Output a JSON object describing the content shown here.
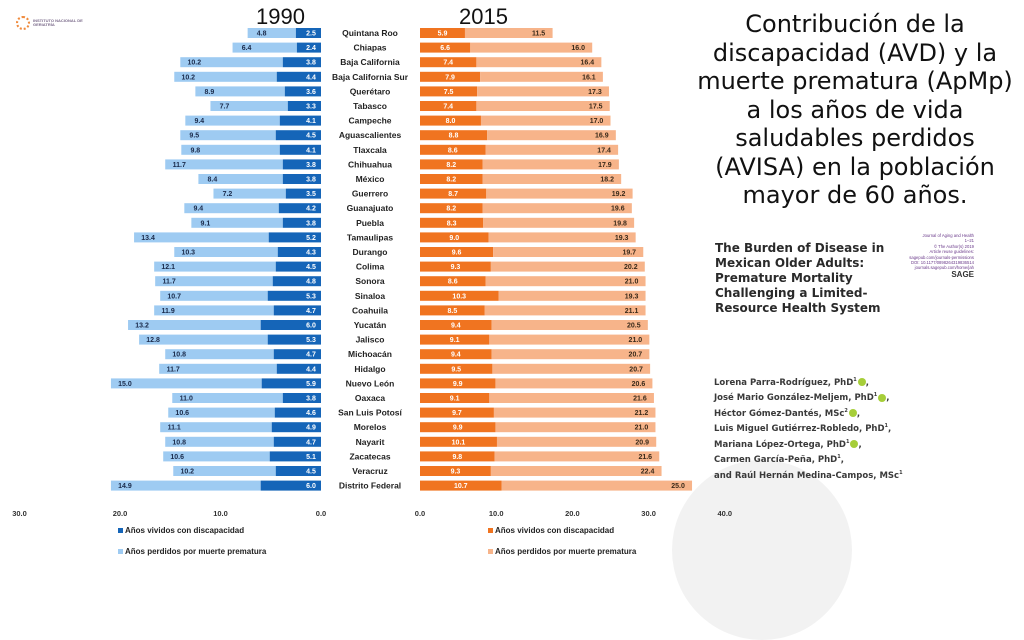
{
  "logo": {
    "text": "INSTITUTO NACIONAL DE GERIATRÍA",
    "icon": "geriatria-logo-icon"
  },
  "headline": "Contribución de la discapacidad (AVD) y la muerte prematura (ApMp) a los años de vida saludables perdidos (AVISA) en la población mayor de 60 años.",
  "paper": {
    "title": "The Burden of Disease in Mexican Older Adults: Premature Mortality Challenging a Limited-Resource Health System",
    "journal_lines": [
      "Journal of Aging and Health",
      "1–21",
      "© The Author(s) 2019",
      "Article reuse guidelines:",
      "sagepub.com/journals-permissions",
      "DOI: 10.1177/0898264319836514",
      "journals.sagepub.com/home/jah"
    ],
    "publisher": "SAGE",
    "authors": [
      {
        "name": "Lorena Parra-Rodríguez, PhD",
        "sup": "1",
        "orcid": true
      },
      {
        "name": "José Mario González-Meljem, PhD",
        "sup": "1",
        "orcid": true
      },
      {
        "name": "Héctor Gómez-Dantés, MSc",
        "sup": "2",
        "orcid": true
      },
      {
        "name": "Luis Miguel Gutiérrez-Robledo, PhD",
        "sup": "1",
        "orcid": false
      },
      {
        "name": "Mariana López-Ortega, PhD",
        "sup": "1",
        "orcid": true
      },
      {
        "name": "Carmen García-Peña, PhD",
        "sup": "1",
        "orcid": false
      },
      {
        "name": "and Raúl Hernán Medina-Campos, MSc",
        "sup": "1",
        "orcid": false
      }
    ]
  },
  "colors": {
    "blue_dark": "#1565b8",
    "blue_light": "#9ecbf2",
    "orange_dark": "#f07420",
    "orange_light": "#f7b48a"
  },
  "chart_data": [
    {
      "type": "bar",
      "orientation": "horizontal-stacked-reversed",
      "title": "1990",
      "categories": [
        "Quintana Roo",
        "Chiapas",
        "Baja California",
        "Baja California Sur",
        "Querétaro",
        "Tabasco",
        "Campeche",
        "Aguascalientes",
        "Tlaxcala",
        "Chihuahua",
        "México",
        "Guerrero",
        "Guanajuato",
        "Puebla",
        "Tamaulipas",
        "Durango",
        "Colima",
        "Sonora",
        "Sinaloa",
        "Coahuila",
        "Yucatán",
        "Jalisco",
        "Michoacán",
        "Hidalgo",
        "Nuevo León",
        "Oaxaca",
        "San Luis Potosí",
        "Morelos",
        "Nayarit",
        "Zacatecas",
        "Veracruz",
        "Distrito Federal"
      ],
      "series": [
        {
          "name": "Años vividos con discapacidad",
          "values": [
            2.5,
            2.4,
            3.8,
            4.4,
            3.6,
            3.3,
            4.1,
            4.5,
            4.1,
            3.8,
            3.8,
            3.5,
            4.2,
            3.8,
            5.2,
            4.3,
            4.5,
            4.8,
            5.3,
            4.7,
            6.0,
            5.3,
            4.7,
            4.4,
            5.9,
            3.8,
            4.6,
            4.9,
            4.7,
            5.1,
            4.5,
            6.0
          ]
        },
        {
          "name": "Años perdidos por muerte prematura",
          "values": [
            4.8,
            6.4,
            10.2,
            10.2,
            8.9,
            7.7,
            9.4,
            9.5,
            9.8,
            11.7,
            8.4,
            7.2,
            9.4,
            9.1,
            13.4,
            10.3,
            12.1,
            11.7,
            10.7,
            11.9,
            13.2,
            12.8,
            10.8,
            11.7,
            15.0,
            11.0,
            10.6,
            11.1,
            10.8,
            10.6,
            10.2,
            14.9
          ]
        }
      ],
      "xlim": [
        30,
        0
      ],
      "xticks": [
        "30.0",
        "20.0",
        "10.0",
        "0.0"
      ],
      "legend": "bottom-left"
    },
    {
      "type": "bar",
      "orientation": "horizontal-stacked",
      "title": "2015",
      "categories": [
        "Quintana Roo",
        "Chiapas",
        "Baja California",
        "Baja California Sur",
        "Querétaro",
        "Tabasco",
        "Campeche",
        "Aguascalientes",
        "Tlaxcala",
        "Chihuahua",
        "México",
        "Guerrero",
        "Guanajuato",
        "Puebla",
        "Tamaulipas",
        "Durango",
        "Colima",
        "Sonora",
        "Sinaloa",
        "Coahuila",
        "Yucatán",
        "Jalisco",
        "Michoacán",
        "Hidalgo",
        "Nuevo León",
        "Oaxaca",
        "San Luis Potosí",
        "Morelos",
        "Nayarit",
        "Zacatecas",
        "Veracruz",
        "Distrito Federal"
      ],
      "series": [
        {
          "name": "Años vividos con discapacidad",
          "values": [
            5.9,
            6.6,
            7.4,
            7.9,
            7.5,
            7.4,
            8.0,
            8.8,
            8.6,
            8.2,
            8.2,
            8.7,
            8.2,
            8.3,
            9.0,
            9.6,
            9.3,
            8.6,
            10.3,
            8.5,
            9.4,
            9.1,
            9.4,
            9.5,
            9.9,
            9.1,
            9.7,
            9.9,
            10.1,
            9.8,
            9.3,
            10.7
          ]
        },
        {
          "name": "Años perdidos por muerte prematura",
          "values": [
            11.5,
            16.0,
            16.4,
            16.1,
            17.3,
            17.5,
            17.0,
            16.9,
            17.4,
            17.9,
            18.2,
            19.2,
            19.6,
            19.8,
            19.3,
            19.7,
            20.2,
            21.0,
            19.3,
            21.1,
            20.5,
            21.0,
            20.7,
            20.7,
            20.6,
            21.6,
            21.2,
            21.0,
            20.9,
            21.6,
            22.4,
            25.0
          ]
        }
      ],
      "xlim": [
        0,
        40
      ],
      "xticks": [
        "0.0",
        "10.0",
        "20.0",
        "30.0",
        "40.0"
      ],
      "legend": "bottom-center"
    }
  ]
}
